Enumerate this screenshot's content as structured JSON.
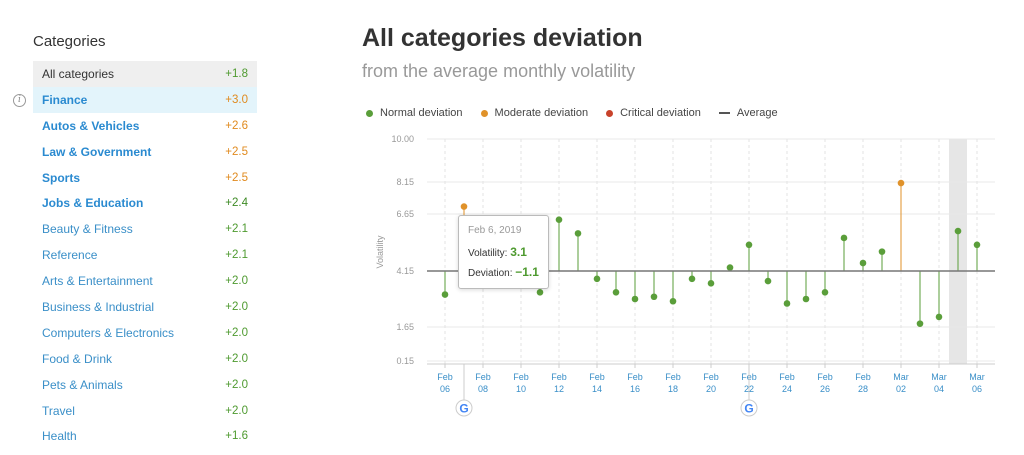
{
  "sidebar": {
    "title": "Categories",
    "items": [
      {
        "label": "All categories",
        "value": "+1.8",
        "kind": "all",
        "color": "green"
      },
      {
        "label": "Finance",
        "value": "+3.0",
        "kind": "bold selected",
        "color": "orange"
      },
      {
        "label": "Autos & Vehicles",
        "value": "+2.6",
        "kind": "bold",
        "color": "orange"
      },
      {
        "label": "Law & Government",
        "value": "+2.5",
        "kind": "bold",
        "color": "orange"
      },
      {
        "label": "Sports",
        "value": "+2.5",
        "kind": "bold",
        "color": "orange"
      },
      {
        "label": "Jobs & Education",
        "value": "+2.4",
        "kind": "bold",
        "color": "green"
      },
      {
        "label": "Beauty & Fitness",
        "value": "+2.1",
        "kind": "",
        "color": "green"
      },
      {
        "label": "Reference",
        "value": "+2.1",
        "kind": "",
        "color": "green"
      },
      {
        "label": "Arts & Entertainment",
        "value": "+2.0",
        "kind": "",
        "color": "green"
      },
      {
        "label": "Business & Industrial",
        "value": "+2.0",
        "kind": "",
        "color": "green"
      },
      {
        "label": "Computers & Electronics",
        "value": "+2.0",
        "kind": "",
        "color": "green"
      },
      {
        "label": "Food & Drink",
        "value": "+2.0",
        "kind": "",
        "color": "green"
      },
      {
        "label": "Pets & Animals",
        "value": "+2.0",
        "kind": "",
        "color": "green"
      },
      {
        "label": "Travel",
        "value": "+2.0",
        "kind": "",
        "color": "green"
      },
      {
        "label": "Health",
        "value": "+1.6",
        "kind": "",
        "color": "green"
      }
    ]
  },
  "header": {
    "title": "All categories deviation",
    "subtitle": "from the average monthly volatility"
  },
  "legend": {
    "normal": "Normal deviation",
    "moderate": "Moderate deviation",
    "critical": "Critical deviation",
    "average": "Average"
  },
  "colors": {
    "normal": "#5a9e3a",
    "moderate": "#e0922a",
    "critical": "#c8422b",
    "average": "#777777",
    "tick_blue": "#3a8fc8"
  },
  "tooltip": {
    "date": "Feb 6, 2019",
    "volatility_label": "Volatility:",
    "volatility_value": "3.1",
    "deviation_label": "Deviation:",
    "deviation_value": "−1.1"
  },
  "chart_data": {
    "type": "scatter",
    "title": "All categories deviation",
    "subtitle": "from the average monthly volatility",
    "ylabel": "Volatility",
    "ylim": [
      0.15,
      10.0
    ],
    "yticks": [
      "10.00",
      "8.15",
      "6.65",
      "4.15",
      "1.65",
      "0.15"
    ],
    "ytick_values": [
      10.0,
      8.15,
      6.65,
      4.15,
      1.65,
      0.15
    ],
    "average": 4.15,
    "x_labels": [
      {
        "index": 0,
        "top": "Feb",
        "bottom": "06"
      },
      {
        "index": 1,
        "top": "Feb",
        "bottom": "08"
      },
      {
        "index": 2,
        "top": "Feb",
        "bottom": "10"
      },
      {
        "index": 3,
        "top": "Feb",
        "bottom": "12"
      },
      {
        "index": 4,
        "top": "Feb",
        "bottom": "14"
      },
      {
        "index": 5,
        "top": "Feb",
        "bottom": "16"
      },
      {
        "index": 6,
        "top": "Feb",
        "bottom": "18"
      },
      {
        "index": 7,
        "top": "Feb",
        "bottom": "20"
      },
      {
        "index": 8,
        "top": "Feb",
        "bottom": "22"
      },
      {
        "index": 9,
        "top": "Feb",
        "bottom": "24"
      },
      {
        "index": 10,
        "top": "Feb",
        "bottom": "26"
      },
      {
        "index": 11,
        "top": "Feb",
        "bottom": "28"
      },
      {
        "index": 12,
        "top": "Mar",
        "bottom": "02"
      },
      {
        "index": 13,
        "top": "Mar",
        "bottom": "04"
      },
      {
        "index": 14,
        "top": "Mar",
        "bottom": "06"
      }
    ],
    "points": [
      {
        "date": "Feb 06",
        "y": 3.1,
        "level": "normal"
      },
      {
        "date": "Feb 07",
        "y": 7.0,
        "level": "moderate"
      },
      {
        "date": "Feb 11",
        "y": 3.2,
        "level": "normal"
      },
      {
        "date": "Feb 12",
        "y": 6.4,
        "level": "normal"
      },
      {
        "date": "Feb 13",
        "y": 5.8,
        "level": "normal"
      },
      {
        "date": "Feb 14",
        "y": 3.8,
        "level": "normal"
      },
      {
        "date": "Feb 15",
        "y": 3.2,
        "level": "normal"
      },
      {
        "date": "Feb 16",
        "y": 2.9,
        "level": "normal"
      },
      {
        "date": "Feb 17",
        "y": 3.0,
        "level": "normal"
      },
      {
        "date": "Feb 18",
        "y": 2.8,
        "level": "normal"
      },
      {
        "date": "Feb 19",
        "y": 3.8,
        "level": "normal"
      },
      {
        "date": "Feb 20",
        "y": 3.6,
        "level": "normal"
      },
      {
        "date": "Feb 21",
        "y": 4.3,
        "level": "normal"
      },
      {
        "date": "Feb 22",
        "y": 5.3,
        "level": "normal"
      },
      {
        "date": "Feb 23",
        "y": 3.7,
        "level": "normal"
      },
      {
        "date": "Feb 24",
        "y": 2.7,
        "level": "normal"
      },
      {
        "date": "Feb 25",
        "y": 2.9,
        "level": "normal"
      },
      {
        "date": "Feb 26",
        "y": 3.2,
        "level": "normal"
      },
      {
        "date": "Feb 27",
        "y": 5.6,
        "level": "normal"
      },
      {
        "date": "Feb 28",
        "y": 4.5,
        "level": "normal"
      },
      {
        "date": "Mar 01",
        "y": 5.0,
        "level": "normal"
      },
      {
        "date": "Mar 02",
        "y": 8.1,
        "level": "moderate"
      },
      {
        "date": "Mar 03",
        "y": 1.8,
        "level": "normal"
      },
      {
        "date": "Mar 04",
        "y": 2.1,
        "level": "normal"
      },
      {
        "date": "Mar 05",
        "y": 5.9,
        "level": "normal"
      },
      {
        "date": "Mar 06",
        "y": 5.3,
        "level": "normal"
      }
    ],
    "highlight_dates": [
      "Mar 05"
    ],
    "google_update_markers": [
      "Feb 07",
      "Feb 22"
    ],
    "grid": true,
    "legend_position": "top"
  }
}
